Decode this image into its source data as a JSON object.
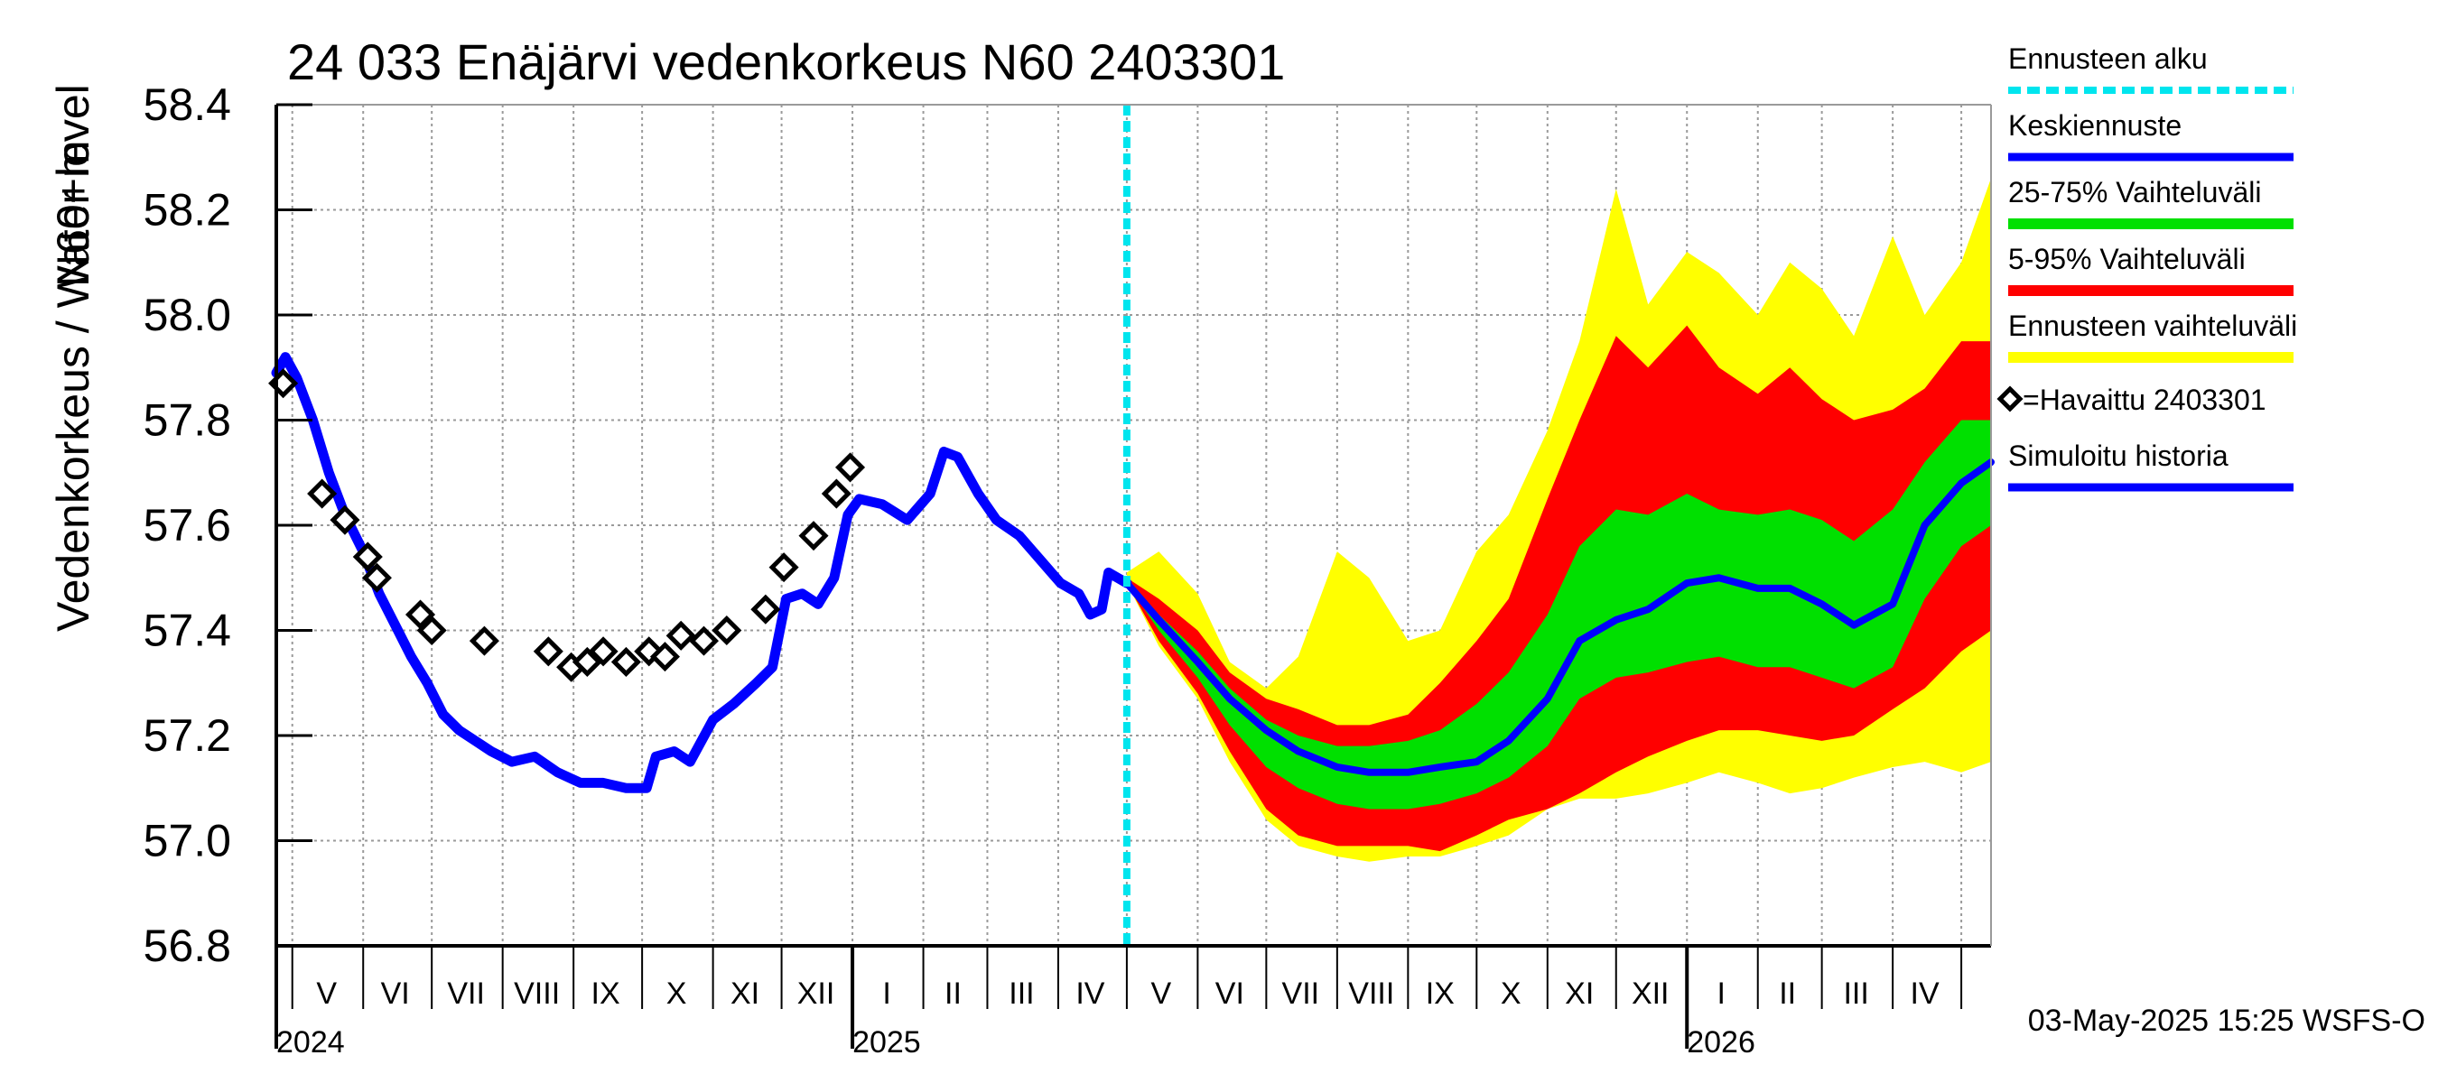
{
  "chart_data": {
    "type": "line",
    "title": "24 033 Enäjärvi vedenkorkeus N60 2403301",
    "ylabel": "Vedenkorkeus / Water level",
    "yunit": "N60+m",
    "ylim": [
      56.8,
      58.4
    ],
    "yticks": [
      "58.4",
      "58.2",
      "58.0",
      "57.8",
      "57.6",
      "57.4",
      "57.2",
      "57.0",
      "56.8"
    ],
    "xlim": [
      "2024-04-24",
      "2026-05-14"
    ],
    "grid": true,
    "month_labels": [
      {
        "label": "V",
        "date": "2024-05-16"
      },
      {
        "label": "VI",
        "date": "2024-06-15"
      },
      {
        "label": "VII",
        "date": "2024-07-16"
      },
      {
        "label": "VIII",
        "date": "2024-08-16"
      },
      {
        "label": "IX",
        "date": "2024-09-15"
      },
      {
        "label": "X",
        "date": "2024-10-16"
      },
      {
        "label": "XI",
        "date": "2024-11-15"
      },
      {
        "label": "XII",
        "date": "2024-12-16"
      },
      {
        "label": "I",
        "date": "2025-01-16"
      },
      {
        "label": "II",
        "date": "2025-02-14"
      },
      {
        "label": "III",
        "date": "2025-03-16"
      },
      {
        "label": "IV",
        "date": "2025-04-15"
      },
      {
        "label": "V",
        "date": "2025-05-16"
      },
      {
        "label": "VI",
        "date": "2025-06-15"
      },
      {
        "label": "VII",
        "date": "2025-07-16"
      },
      {
        "label": "VIII",
        "date": "2025-08-16"
      },
      {
        "label": "IX",
        "date": "2025-09-15"
      },
      {
        "label": "X",
        "date": "2025-10-16"
      },
      {
        "label": "XI",
        "date": "2025-11-15"
      },
      {
        "label": "XII",
        "date": "2025-12-16"
      },
      {
        "label": "I",
        "date": "2026-01-16"
      },
      {
        "label": "II",
        "date": "2026-02-14"
      },
      {
        "label": "III",
        "date": "2026-03-16"
      },
      {
        "label": "IV",
        "date": "2026-04-15"
      }
    ],
    "year_labels": [
      {
        "label": "2024",
        "date": "2024-04-24"
      },
      {
        "label": "2025",
        "date": "2025-01-01"
      },
      {
        "label": "2026",
        "date": "2026-01-01"
      }
    ],
    "forecast_start": "2025-05-01",
    "colors": {
      "forecast_start": "#00e5ee",
      "mean": "#0000ff",
      "p25_75": "#00e000",
      "p5_95": "#ff0000",
      "range": "#ffff00",
      "observed": "#000000",
      "history": "#0000ff"
    },
    "legend": [
      {
        "label": "Ennusteen alku",
        "key": "forecast_start",
        "style": "dashed"
      },
      {
        "label": "Keskiennuste",
        "key": "mean",
        "style": "line"
      },
      {
        "label": "25-75% Vaihteluväli",
        "key": "p25_75",
        "style": "band"
      },
      {
        "label": "5-95% Vaihteluväli",
        "key": "p5_95",
        "style": "band"
      },
      {
        "label": "Ennusteen vaihteluväli",
        "key": "range",
        "style": "band"
      },
      {
        "label": "=Havaittu 2403301",
        "key": "observed",
        "style": "marker"
      },
      {
        "label": "Simuloitu historia",
        "key": "history",
        "style": "line"
      }
    ],
    "series": [
      {
        "name": "Simuloitu historia",
        "points": [
          [
            "2024-04-24",
            57.89
          ],
          [
            "2024-04-28",
            57.92
          ],
          [
            "2024-05-03",
            57.88
          ],
          [
            "2024-05-10",
            57.8
          ],
          [
            "2024-05-17",
            57.7
          ],
          [
            "2024-05-24",
            57.62
          ],
          [
            "2024-06-01",
            57.55
          ],
          [
            "2024-06-08",
            57.47
          ],
          [
            "2024-06-15",
            57.41
          ],
          [
            "2024-06-22",
            57.35
          ],
          [
            "2024-06-29",
            57.3
          ],
          [
            "2024-07-06",
            57.24
          ],
          [
            "2024-07-13",
            57.21
          ],
          [
            "2024-07-20",
            57.19
          ],
          [
            "2024-07-27",
            57.17
          ],
          [
            "2024-08-05",
            57.15
          ],
          [
            "2024-08-15",
            57.16
          ],
          [
            "2024-08-25",
            57.13
          ],
          [
            "2024-09-04",
            57.11
          ],
          [
            "2024-09-14",
            57.11
          ],
          [
            "2024-09-24",
            57.1
          ],
          [
            "2024-10-03",
            57.1
          ],
          [
            "2024-10-07",
            57.16
          ],
          [
            "2024-10-15",
            57.17
          ],
          [
            "2024-10-22",
            57.15
          ],
          [
            "2024-11-01",
            57.23
          ],
          [
            "2024-11-10",
            57.26
          ],
          [
            "2024-11-20",
            57.3
          ],
          [
            "2024-11-27",
            57.33
          ],
          [
            "2024-12-03",
            57.46
          ],
          [
            "2024-12-10",
            57.47
          ],
          [
            "2024-12-17",
            57.45
          ],
          [
            "2024-12-24",
            57.5
          ],
          [
            "2024-12-30",
            57.62
          ],
          [
            "2025-01-04",
            57.65
          ],
          [
            "2025-01-14",
            57.64
          ],
          [
            "2025-01-25",
            57.61
          ],
          [
            "2025-02-04",
            57.66
          ],
          [
            "2025-02-10",
            57.74
          ],
          [
            "2025-02-16",
            57.73
          ],
          [
            "2025-02-25",
            57.66
          ],
          [
            "2025-03-05",
            57.61
          ],
          [
            "2025-03-15",
            57.58
          ],
          [
            "2025-03-25",
            57.53
          ],
          [
            "2025-04-02",
            57.49
          ],
          [
            "2025-04-10",
            57.47
          ],
          [
            "2025-04-15",
            57.43
          ],
          [
            "2025-04-20",
            57.44
          ],
          [
            "2025-04-23",
            57.51
          ],
          [
            "2025-04-27",
            57.5
          ],
          [
            "2025-05-01",
            57.49
          ]
        ]
      },
      {
        "name": "Keskiennuste",
        "points": [
          [
            "2025-05-01",
            57.49
          ],
          [
            "2025-05-15",
            57.42
          ],
          [
            "2025-06-01",
            57.34
          ],
          [
            "2025-06-15",
            57.27
          ],
          [
            "2025-07-01",
            57.21
          ],
          [
            "2025-07-15",
            57.17
          ],
          [
            "2025-08-01",
            57.14
          ],
          [
            "2025-08-15",
            57.13
          ],
          [
            "2025-09-01",
            57.13
          ],
          [
            "2025-09-15",
            57.14
          ],
          [
            "2025-10-01",
            57.15
          ],
          [
            "2025-10-15",
            57.19
          ],
          [
            "2025-11-01",
            57.27
          ],
          [
            "2025-11-15",
            57.38
          ],
          [
            "2025-12-01",
            57.42
          ],
          [
            "2025-12-15",
            57.44
          ],
          [
            "2026-01-01",
            57.49
          ],
          [
            "2026-01-15",
            57.5
          ],
          [
            "2026-02-01",
            57.48
          ],
          [
            "2026-02-15",
            57.48
          ],
          [
            "2026-03-01",
            57.45
          ],
          [
            "2026-03-15",
            57.41
          ],
          [
            "2026-04-01",
            57.45
          ],
          [
            "2026-04-15",
            57.6
          ],
          [
            "2026-05-01",
            57.68
          ],
          [
            "2026-05-14",
            57.72
          ]
        ]
      }
    ],
    "bands": [
      {
        "name": "Ennusteen vaihteluväli",
        "points": [
          [
            "2025-05-01",
            57.51,
            57.49
          ],
          [
            "2025-05-15",
            57.55,
            57.37
          ],
          [
            "2025-06-01",
            57.47,
            57.27
          ],
          [
            "2025-06-15",
            57.34,
            57.15
          ],
          [
            "2025-07-01",
            57.29,
            57.04
          ],
          [
            "2025-07-15",
            57.35,
            56.99
          ],
          [
            "2025-08-01",
            57.55,
            56.97
          ],
          [
            "2025-08-15",
            57.5,
            56.96
          ],
          [
            "2025-09-01",
            57.38,
            56.97
          ],
          [
            "2025-09-15",
            57.4,
            56.97
          ],
          [
            "2025-10-01",
            57.55,
            56.99
          ],
          [
            "2025-10-15",
            57.62,
            57.01
          ],
          [
            "2025-11-01",
            57.78,
            57.06
          ],
          [
            "2025-11-15",
            57.95,
            57.08
          ],
          [
            "2025-12-01",
            58.24,
            57.08
          ],
          [
            "2025-12-15",
            58.02,
            57.09
          ],
          [
            "2026-01-01",
            58.12,
            57.11
          ],
          [
            "2026-01-15",
            58.08,
            57.13
          ],
          [
            "2026-02-01",
            58.0,
            57.11
          ],
          [
            "2026-02-15",
            58.1,
            57.09
          ],
          [
            "2026-03-01",
            58.05,
            57.1
          ],
          [
            "2026-03-15",
            57.96,
            57.12
          ],
          [
            "2026-04-01",
            58.15,
            57.14
          ],
          [
            "2026-04-15",
            58.0,
            57.15
          ],
          [
            "2026-05-01",
            58.1,
            57.13
          ],
          [
            "2026-05-14",
            58.26,
            57.15
          ]
        ]
      },
      {
        "name": "5-95% Vaihteluväli",
        "points": [
          [
            "2025-05-01",
            57.5,
            57.49
          ],
          [
            "2025-05-15",
            57.46,
            57.38
          ],
          [
            "2025-06-01",
            57.4,
            57.28
          ],
          [
            "2025-06-15",
            57.32,
            57.17
          ],
          [
            "2025-07-01",
            57.27,
            57.06
          ],
          [
            "2025-07-15",
            57.25,
            57.01
          ],
          [
            "2025-08-01",
            57.22,
            56.99
          ],
          [
            "2025-08-15",
            57.22,
            56.99
          ],
          [
            "2025-09-01",
            57.24,
            56.99
          ],
          [
            "2025-09-15",
            57.3,
            56.98
          ],
          [
            "2025-10-01",
            57.38,
            57.01
          ],
          [
            "2025-10-15",
            57.46,
            57.04
          ],
          [
            "2025-11-01",
            57.65,
            57.06
          ],
          [
            "2025-11-15",
            57.8,
            57.09
          ],
          [
            "2025-12-01",
            57.96,
            57.13
          ],
          [
            "2025-12-15",
            57.9,
            57.16
          ],
          [
            "2026-01-01",
            57.98,
            57.19
          ],
          [
            "2026-01-15",
            57.9,
            57.21
          ],
          [
            "2026-02-01",
            57.85,
            57.21
          ],
          [
            "2026-02-15",
            57.9,
            57.2
          ],
          [
            "2026-03-01",
            57.84,
            57.19
          ],
          [
            "2026-03-15",
            57.8,
            57.2
          ],
          [
            "2026-04-01",
            57.82,
            57.25
          ],
          [
            "2026-04-15",
            57.86,
            57.29
          ],
          [
            "2026-05-01",
            57.95,
            57.36
          ],
          [
            "2026-05-14",
            57.95,
            57.4
          ]
        ]
      },
      {
        "name": "25-75% Vaihteluväli",
        "points": [
          [
            "2025-05-01",
            57.5,
            57.49
          ],
          [
            "2025-05-15",
            57.43,
            57.4
          ],
          [
            "2025-06-01",
            57.36,
            57.31
          ],
          [
            "2025-06-15",
            57.29,
            57.22
          ],
          [
            "2025-07-01",
            57.23,
            57.14
          ],
          [
            "2025-07-15",
            57.2,
            57.1
          ],
          [
            "2025-08-01",
            57.18,
            57.07
          ],
          [
            "2025-08-15",
            57.18,
            57.06
          ],
          [
            "2025-09-01",
            57.19,
            57.06
          ],
          [
            "2025-09-15",
            57.21,
            57.07
          ],
          [
            "2025-10-01",
            57.26,
            57.09
          ],
          [
            "2025-10-15",
            57.32,
            57.12
          ],
          [
            "2025-11-01",
            57.43,
            57.18
          ],
          [
            "2025-11-15",
            57.56,
            57.27
          ],
          [
            "2025-12-01",
            57.63,
            57.31
          ],
          [
            "2025-12-15",
            57.62,
            57.32
          ],
          [
            "2026-01-01",
            57.66,
            57.34
          ],
          [
            "2026-01-15",
            57.63,
            57.35
          ],
          [
            "2026-02-01",
            57.62,
            57.33
          ],
          [
            "2026-02-15",
            57.63,
            57.33
          ],
          [
            "2026-03-01",
            57.61,
            57.31
          ],
          [
            "2026-03-15",
            57.57,
            57.29
          ],
          [
            "2026-04-01",
            57.63,
            57.33
          ],
          [
            "2026-04-15",
            57.72,
            57.46
          ],
          [
            "2026-05-01",
            57.8,
            57.56
          ],
          [
            "2026-05-14",
            57.8,
            57.6
          ]
        ]
      }
    ],
    "observed": [
      [
        "2024-04-27",
        57.87
      ],
      [
        "2024-05-14",
        57.66
      ],
      [
        "2024-05-24",
        57.61
      ],
      [
        "2024-06-03",
        57.54
      ],
      [
        "2024-06-07",
        57.5
      ],
      [
        "2024-06-26",
        57.43
      ],
      [
        "2024-07-01",
        57.4
      ],
      [
        "2024-07-24",
        57.38
      ],
      [
        "2024-08-21",
        57.36
      ],
      [
        "2024-08-31",
        57.33
      ],
      [
        "2024-09-07",
        57.34
      ],
      [
        "2024-09-14",
        57.36
      ],
      [
        "2024-09-24",
        57.34
      ],
      [
        "2024-10-04",
        57.36
      ],
      [
        "2024-10-11",
        57.35
      ],
      [
        "2024-10-18",
        57.39
      ],
      [
        "2024-10-28",
        57.38
      ],
      [
        "2024-11-07",
        57.4
      ],
      [
        "2024-11-24",
        57.44
      ],
      [
        "2024-12-02",
        57.52
      ],
      [
        "2024-12-15",
        57.58
      ],
      [
        "2024-12-25",
        57.66
      ],
      [
        "2024-12-31",
        57.71
      ]
    ],
    "footer": "03-May-2025 15:25 WSFS-O"
  }
}
